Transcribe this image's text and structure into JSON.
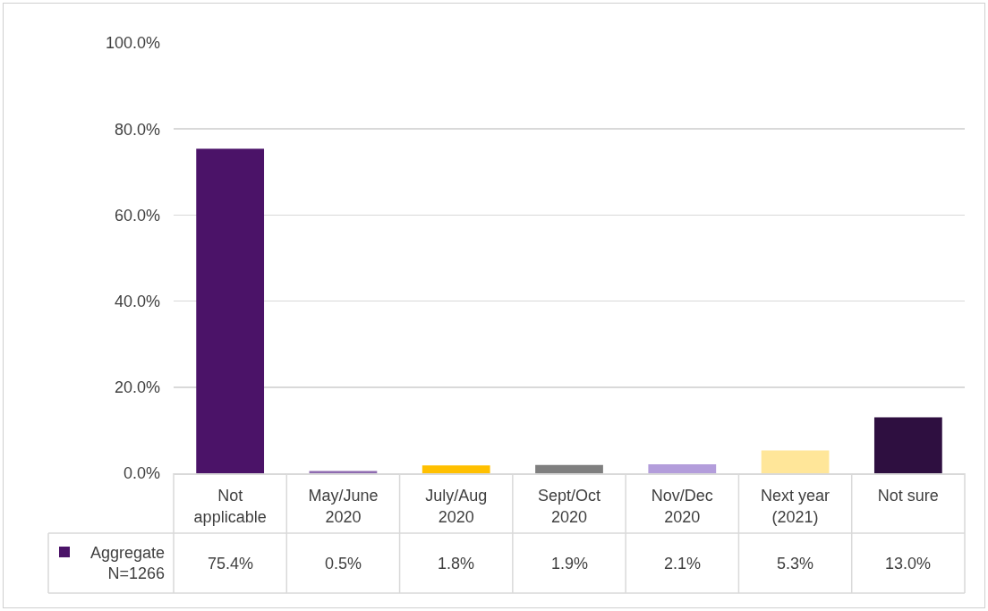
{
  "chart_data": {
    "type": "bar",
    "categories": [
      "Not applicable",
      "May/June 2020",
      "July/Aug 2020",
      "Sept/Oct 2020",
      "Nov/Dec 2020",
      "Next year (2021)",
      "Not sure"
    ],
    "series": [
      {
        "name": "Aggregate N=1266",
        "color": "#4b1368",
        "colors": [
          "#4b1368",
          "#8e6bb0",
          "#ffc000",
          "#7f7f7f",
          "#b39ddb",
          "#ffe699",
          "#2e0f40"
        ],
        "values": [
          75.4,
          0.5,
          1.8,
          1.9,
          2.1,
          5.3,
          13.0
        ],
        "value_labels": [
          "75.4%",
          "0.5%",
          "1.8%",
          "1.9%",
          "2.1%",
          "5.3%",
          "13.0%"
        ]
      }
    ],
    "ylim": [
      0,
      100
    ],
    "yticks": [
      {
        "value": 0,
        "label": "0.0%"
      },
      {
        "value": 20,
        "label": "20.0%"
      },
      {
        "value": 40,
        "label": "40.0%"
      },
      {
        "value": 60,
        "label": "60.0%"
      },
      {
        "value": 80,
        "label": "80.0%"
      },
      {
        "value": 100,
        "label": "100.0%"
      }
    ],
    "grid": "y"
  }
}
